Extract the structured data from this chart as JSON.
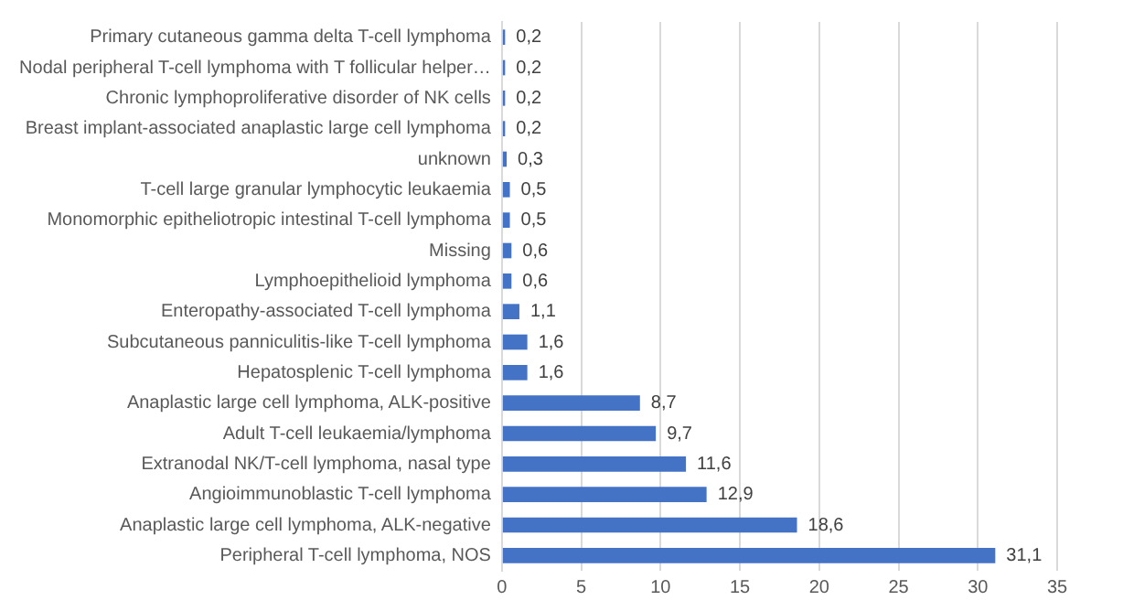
{
  "chart_data": {
    "type": "bar",
    "orientation": "horizontal",
    "categories": [
      "Primary cutaneous gamma delta T-cell lymphoma",
      "Nodal peripheral T-cell lymphoma with T follicular helper…",
      "Chronic lymphoproliferative disorder of NK cells",
      "Breast implant-associated anaplastic large cell lymphoma",
      "unknown",
      "T-cell large granular lymphocytic leukaemia",
      "Monomorphic epitheliotropic intestinal T-cell lymphoma",
      "Missing",
      "Lymphoepithelioid lymphoma",
      "Enteropathy-associated T-cell lymphoma",
      "Subcutaneous panniculitis-like T-cell lymphoma",
      "Hepatosplenic T-cell lymphoma",
      "Anaplastic large cell lymphoma, ALK-positive",
      "Adult T-cell leukaemia/lymphoma",
      "Extranodal NK/T-cell lymphoma, nasal type",
      "Angioimmunoblastic T-cell lymphoma",
      "Anaplastic large cell lymphoma, ALK-negative",
      "Peripheral T-cell lymphoma, NOS"
    ],
    "values": [
      0.2,
      0.2,
      0.2,
      0.2,
      0.3,
      0.5,
      0.5,
      0.6,
      0.6,
      1.1,
      1.6,
      1.6,
      8.7,
      9.7,
      11.6,
      12.9,
      18.6,
      31.1
    ],
    "value_labels": [
      "0,2",
      "0,2",
      "0,2",
      "0,2",
      "0,3",
      "0,5",
      "0,5",
      "0,6",
      "0,6",
      "1,1",
      "1,6",
      "1,6",
      "8,7",
      "9,7",
      "11,6",
      "12,9",
      "18,6",
      "31,1"
    ],
    "color": "#4472c4",
    "xlim": [
      0,
      35
    ],
    "xticks": [
      0,
      5,
      10,
      15,
      20,
      25,
      30,
      35
    ],
    "grid": "x",
    "legend": false
  }
}
